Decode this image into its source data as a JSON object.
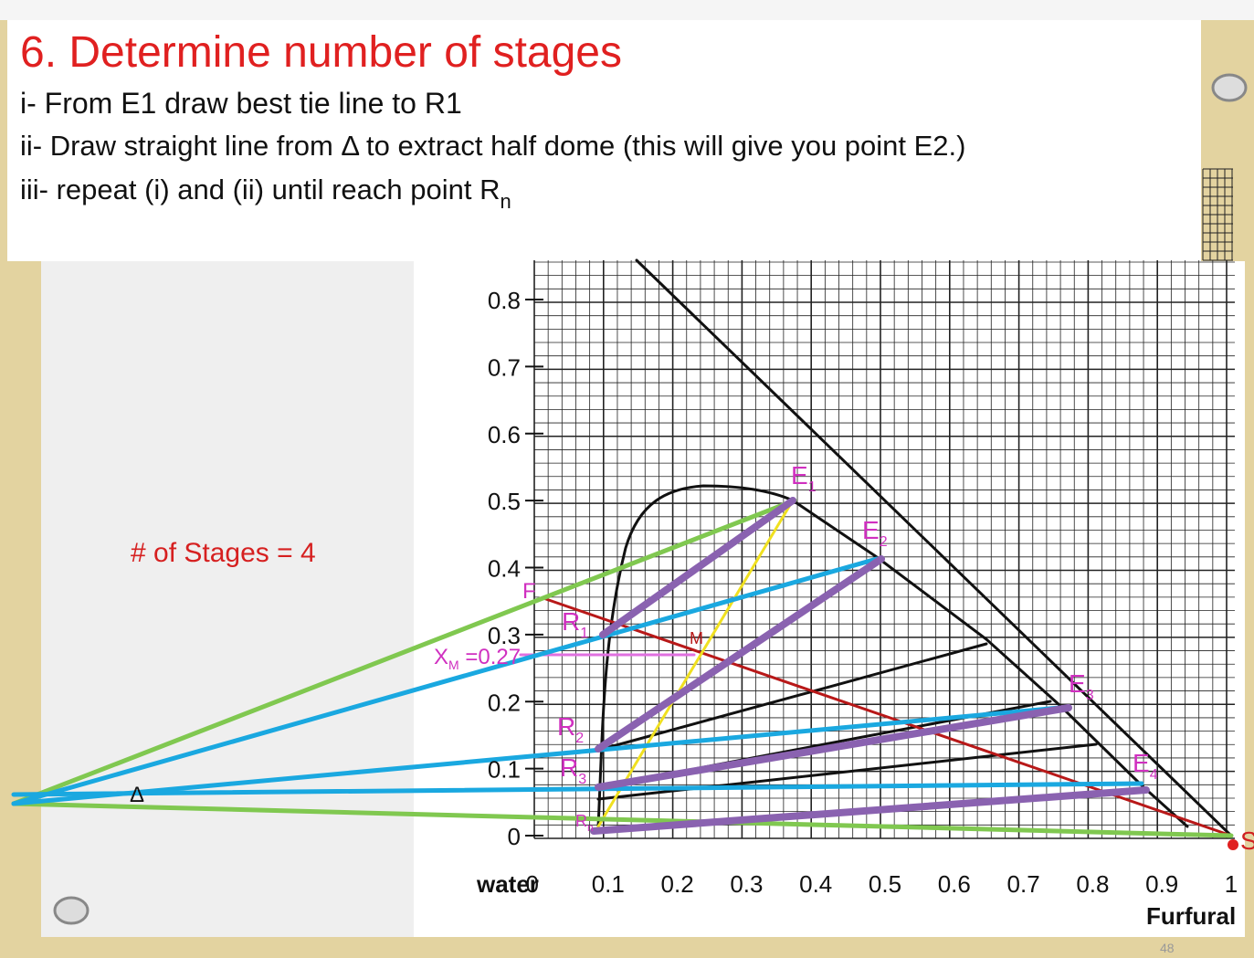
{
  "title": "6. Determine number of stages",
  "steps": [
    {
      "text": "i- From E1 draw best tie line to R1"
    },
    {
      "text": "ii- Draw straight line from Δ to extract half dome (this will give you point E2.)"
    },
    {
      "text": "iii- repeat (i) and (ii) until reach point R",
      "sub": "n"
    }
  ],
  "stages_note": "# of Stages = 4",
  "figure": {
    "y_ticks": [
      0,
      0.1,
      0.2,
      0.3,
      0.4,
      0.5,
      0.6,
      0.7,
      0.8
    ],
    "x_ticks": [
      0,
      0.1,
      0.2,
      0.3,
      0.4,
      0.5,
      0.6,
      0.7,
      0.8,
      0.9,
      1
    ],
    "x_label_left": "water",
    "x_label_right": "Furfural",
    "points": [
      {
        "main": "E",
        "sub": "1"
      },
      {
        "main": "E",
        "sub": "2"
      },
      {
        "main": "E",
        "sub": "3"
      },
      {
        "main": "E",
        "sub": "4"
      },
      {
        "main": "R",
        "sub": "1"
      },
      {
        "main": "R",
        "sub": "2"
      },
      {
        "main": "R",
        "sub": "3"
      },
      {
        "main": "R",
        "sub": "n"
      },
      {
        "main": "F"
      },
      {
        "main": "M"
      },
      {
        "main": "S"
      }
    ],
    "delta": "Δ",
    "xm": {
      "main": "X",
      "sub": "M",
      "rest": " =0.27"
    }
  },
  "page_number": "48"
}
